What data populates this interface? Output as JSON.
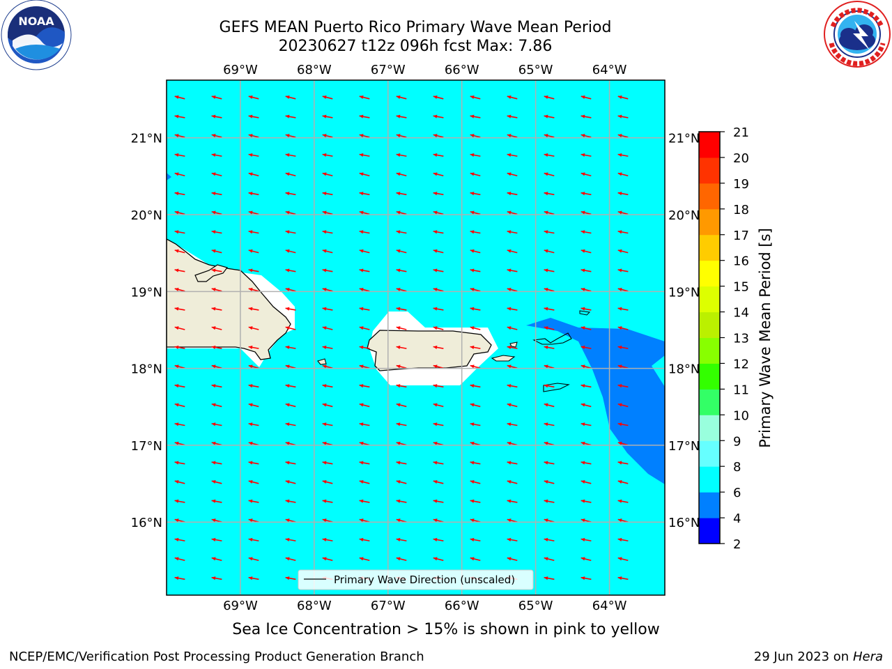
{
  "header": {
    "title_line1": "GEFS MEAN Puerto Rico Primary Wave Mean Period",
    "title_line2": "20230627 t12z 096h fcst   Max: 7.86"
  },
  "logos": {
    "left": {
      "name": "noaa-logo",
      "text": "NOAA",
      "ring_text": "NATIONAL OCEANIC AND ATMOSPHERIC ADMINISTRATION · U.S. DEPARTMENT OF COMMERCE"
    },
    "right": {
      "name": "nws-logo",
      "ring_text": "NATIONAL WEATHER SERVICE"
    }
  },
  "map": {
    "lon_labels": [
      "69°W",
      "68°W",
      "67°W",
      "66°W",
      "65°W",
      "64°W"
    ],
    "lon_values": [
      -69,
      -68,
      -67,
      -66,
      -65,
      -64
    ],
    "lat_labels": [
      "21°N",
      "20°N",
      "19°N",
      "18°N",
      "17°N",
      "16°N"
    ],
    "lat_values": [
      21,
      20,
      19,
      18,
      17,
      16
    ],
    "lon_range": [
      -70,
      -63.25
    ],
    "lat_range": [
      15.05,
      21.75
    ],
    "ocean_color": "#00ffff",
    "land_color": "#efedd9",
    "arrow_color": "#ff0000",
    "legend_label": "Primary Wave Direction (unscaled)"
  },
  "colorbar": {
    "title": "Primary Wave Mean Period [s]",
    "ticks": [
      "2",
      "4",
      "6",
      "8",
      "9",
      "10",
      "11",
      "12",
      "13",
      "14",
      "15",
      "16",
      "17",
      "18",
      "19",
      "20",
      "21"
    ],
    "colors": [
      "#0000ff",
      "#0080ff",
      "#00ffff",
      "#66ffff",
      "#99ffdd",
      "#33ff66",
      "#33ff00",
      "#88ff00",
      "#bbf000",
      "#ddff00",
      "#ffff00",
      "#ffcc00",
      "#ff9900",
      "#ff6600",
      "#ff3300",
      "#ff0000"
    ]
  },
  "footer": {
    "note": "Sea Ice Concentration > 15% is shown in pink to yellow",
    "credit_left": "NCEP/EMC/Verification Post Processing Product Generation Branch",
    "credit_date": "29 Jun 2023 on",
    "credit_host": "Hera"
  }
}
